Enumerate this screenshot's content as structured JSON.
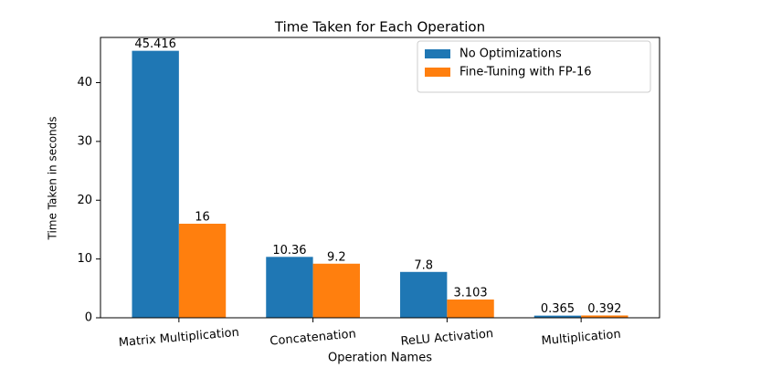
{
  "chart_data": {
    "type": "bar",
    "title": "Time Taken for Each Operation",
    "x_label": "Operation Names",
    "y_label": "Time Taken in seconds",
    "categories": [
      "Matrix Multiplication",
      "Concatenation",
      "ReLU Activation",
      "Multiplication"
    ],
    "series": [
      {
        "name": "No Optimizations",
        "color": "#1f77b4",
        "values": [
          45.416,
          10.36,
          7.8,
          0.365
        ]
      },
      {
        "name": "Fine-Tuning with FP-16",
        "color": "#ff7f0e",
        "values": [
          16,
          9.2,
          3.103,
          0.392
        ]
      }
    ],
    "ylim": [
      0,
      47.69
    ],
    "yticks": [
      0,
      10,
      20,
      30,
      40
    ],
    "legend": "upper right"
  }
}
